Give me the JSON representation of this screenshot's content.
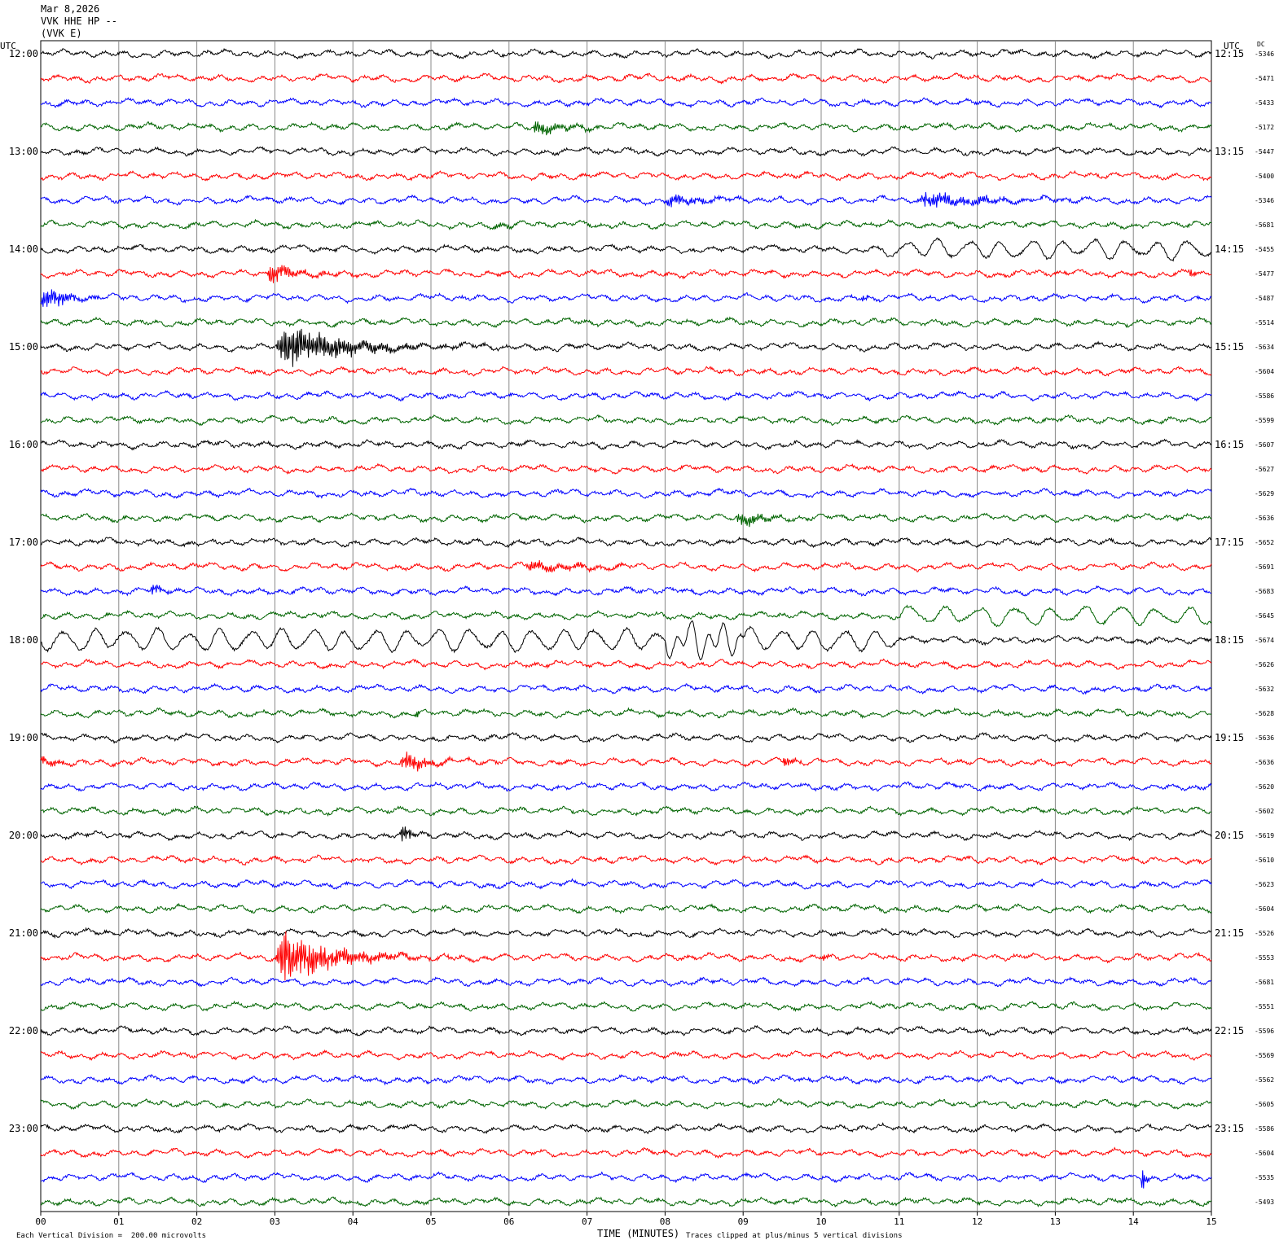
{
  "header": {
    "date": "Mar 8,2026",
    "station_line": "VVK HHE HP --",
    "component_line": "(VVK E)"
  },
  "chart_data": {
    "type": "line",
    "plot_kind": "helicorder",
    "left_axis_label": "UTC",
    "right_axis_label": "UTC",
    "dc_label": "DC",
    "colors": [
      "#000000",
      "#ff0000",
      "#0000ff",
      "#006400"
    ],
    "left_hour_labels": [
      "12:00",
      "13:00",
      "14:00",
      "15:00",
      "16:00",
      "17:00",
      "18:00",
      "19:00",
      "20:00",
      "21:00",
      "22:00",
      "23:00"
    ],
    "right_hour_labels": [
      "12:15",
      "13:15",
      "14:15",
      "15:15",
      "16:15",
      "17:15",
      "18:15",
      "19:15",
      "20:15",
      "21:15",
      "22:15",
      "23:15"
    ],
    "dc_offsets": [
      "-5346",
      "-5471",
      "-5433",
      "-5172",
      "-5447",
      "-5400",
      "-5346",
      "-5681",
      "-5455",
      "-5477",
      "-5487",
      "-5514",
      "-5634",
      "-5604",
      "-5586",
      "-5599",
      "-5607",
      "-5627",
      "-5629",
      "-5636",
      "-5652",
      "-5691",
      "-5683",
      "-5645",
      "-5674",
      "-5626",
      "-5632",
      "-5628",
      "-5636",
      "-5636",
      "-5620",
      "-5602",
      "-5619",
      "-5610",
      "-5623",
      "-5604",
      "-5526",
      "-5553",
      "-5681",
      "-5551",
      "-5596",
      "-5569",
      "-5562",
      "-5605",
      "-5586",
      "-5604",
      "-5535",
      "-5493"
    ],
    "x_ticks": [
      "00",
      "01",
      "02",
      "03",
      "04",
      "05",
      "06",
      "07",
      "08",
      "09",
      "10",
      "11",
      "12",
      "13",
      "14",
      "15"
    ],
    "xlabel": "TIME (MINUTES)",
    "xlim": [
      0,
      15
    ],
    "minutes_per_line": 15,
    "events": [
      {
        "line": 3,
        "start": 6.3,
        "end": 7.7,
        "amp": 1.2,
        "period": 0.05
      },
      {
        "line": 6,
        "start": 8.0,
        "end": 9.5,
        "amp": 1.1,
        "period": 0.05
      },
      {
        "line": 6,
        "start": 11.2,
        "end": 14.5,
        "amp": 1.2,
        "period": 0.05
      },
      {
        "line": 7,
        "start": 5.8,
        "end": 6.5,
        "amp": 0.6,
        "period": 0.06
      },
      {
        "line": 9,
        "start": 2.9,
        "end": 4.2,
        "amp": 1.6,
        "period": 0.05
      },
      {
        "line": 9,
        "start": 14.7,
        "end": 15.0,
        "amp": 0.8,
        "period": 0.04
      },
      {
        "line": 10,
        "start": 0.0,
        "end": 1.2,
        "amp": 2.0,
        "period": 0.04
      },
      {
        "line": 10,
        "start": 10.5,
        "end": 10.8,
        "amp": 0.6,
        "period": 0.04
      },
      {
        "line": 12,
        "start": 3.0,
        "end": 6.0,
        "amp": 3.5,
        "period": 0.04
      },
      {
        "line": 19,
        "start": 8.9,
        "end": 10.2,
        "amp": 1.4,
        "period": 0.05
      },
      {
        "line": 21,
        "start": 6.2,
        "end": 8.8,
        "amp": 0.9,
        "period": 0.08
      },
      {
        "line": 22,
        "start": 1.4,
        "end": 2.0,
        "amp": 0.8,
        "period": 0.05
      },
      {
        "line": 27,
        "start": 4.8,
        "end": 4.95,
        "amp": 1.0,
        "period": 0.03
      },
      {
        "line": 29,
        "start": 0.0,
        "end": 0.7,
        "amp": 1.0,
        "period": 0.04
      },
      {
        "line": 29,
        "start": 4.6,
        "end": 5.9,
        "amp": 1.5,
        "period": 0.04
      },
      {
        "line": 29,
        "start": 9.5,
        "end": 10.0,
        "amp": 0.8,
        "period": 0.04
      },
      {
        "line": 32,
        "start": 4.6,
        "end": 5.1,
        "amp": 1.8,
        "period": 0.03
      },
      {
        "line": 37,
        "start": 3.0,
        "end": 5.5,
        "amp": 4.5,
        "period": 0.04
      },
      {
        "line": 37,
        "start": 10.0,
        "end": 10.2,
        "amp": 0.8,
        "period": 0.03
      },
      {
        "line": 46,
        "start": 14.1,
        "end": 14.25,
        "amp": 3.0,
        "period": 0.03
      }
    ],
    "long_period": [
      {
        "line": 8,
        "start": 10.8,
        "end": 15.0,
        "amp": 1.0,
        "period": 0.4
      },
      {
        "line": 23,
        "start": 11.0,
        "end": 15.0,
        "amp": 1.0,
        "period": 0.45
      },
      {
        "line": 24,
        "start": 0.0,
        "end": 11.0,
        "amp": 1.2,
        "period": 0.4
      },
      {
        "line": 24,
        "start": 8.0,
        "end": 9.0,
        "amp": 1.5,
        "period": 0.2
      }
    ]
  },
  "footer": {
    "scale_note": "Each Vertical Division =  200.00 microvolts",
    "clip_note": "Traces clipped at plus/minus 5 vertical divisions"
  }
}
